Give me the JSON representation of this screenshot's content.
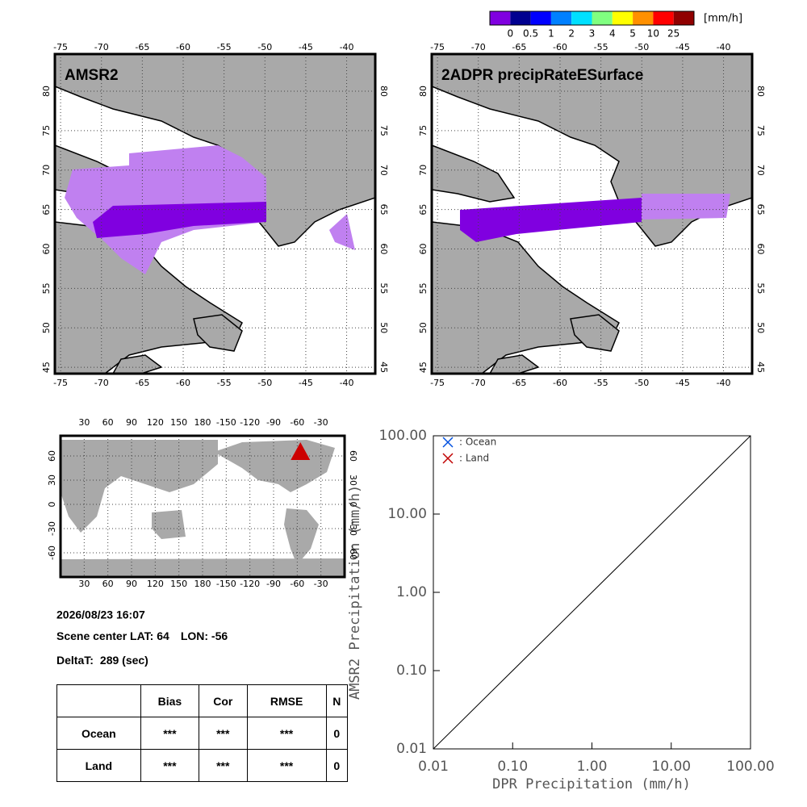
{
  "colorbar": {
    "colors": [
      "#8000e0",
      "#000090",
      "#0000ff",
      "#0080ff",
      "#00e0ff",
      "#80ff80",
      "#ffff00",
      "#ff9000",
      "#ff0000",
      "#900000"
    ],
    "labels": [
      0,
      0.5,
      1,
      2,
      3,
      4,
      5,
      10,
      25
    ],
    "unit": "[mm/h]"
  },
  "maps": [
    {
      "title": "AMSR2",
      "lonlim": [
        -75.7,
        -36.5
      ],
      "latlim": [
        44.2,
        84.7
      ],
      "lonticks": [
        -75,
        -70,
        -65,
        -60,
        -55,
        -50,
        -45,
        -40
      ],
      "latticks": [
        45,
        50,
        55,
        60,
        65,
        70,
        75,
        80
      ]
    },
    {
      "title": "2ADPR precipRateESurface",
      "lonlim": [
        -75.7,
        -36.5
      ],
      "latlim": [
        44.2,
        84.7
      ],
      "lonticks": [
        -75,
        -70,
        -65,
        -60,
        -55,
        -50,
        -45,
        -40
      ],
      "latticks": [
        45,
        50,
        55,
        60,
        65,
        70,
        75,
        80
      ]
    }
  ],
  "world_map": {
    "lonlim": [
      0,
      360
    ],
    "latlim": [
      -90,
      85
    ],
    "lonticks": [
      30,
      60,
      90,
      120,
      150,
      180,
      {
        "value": 210,
        "label": "-150"
      },
      {
        "value": 240,
        "label": "-120"
      },
      {
        "value": 270,
        "label": "-90"
      },
      {
        "value": 300,
        "label": "-60"
      },
      {
        "value": 330,
        "label": "-30"
      }
    ],
    "latticks": [
      -60,
      -30,
      0,
      30,
      60
    ],
    "marker_color": "#cc0000"
  },
  "scene": {
    "time": "2026/08/23 16:07",
    "lat_label": "Scene center LAT:",
    "lat": 64,
    "lon_label": "LON:",
    "lon": -56,
    "deltat_label": "DeltaT:",
    "deltat": 289,
    "deltat_unit": "(sec)"
  },
  "table": {
    "header": [
      "Bias",
      "Cor",
      "RMSE",
      "N"
    ],
    "rows": [
      {
        "label": "Ocean",
        "cells": [
          "***",
          "***",
          "***",
          0
        ]
      },
      {
        "label": "Land",
        "cells": [
          "***",
          "***",
          "***",
          0
        ]
      }
    ]
  },
  "chart_data": {
    "type": "scatter",
    "x_label": "DPR Precipitation (mm/h)",
    "y_label": "AMSR2 Precipitation (mm/h)",
    "xlim": [
      0.01,
      100
    ],
    "ylim": [
      0.01,
      100
    ],
    "log_scale": true,
    "grid": false,
    "legend": "upper left",
    "xticks": [
      {
        "value": 0.01,
        "label": "0.01"
      },
      {
        "value": 0.1,
        "label": "0.10"
      },
      {
        "value": 1,
        "label": "1.00"
      },
      {
        "value": 10,
        "label": "10.00"
      },
      {
        "value": 100,
        "label": "100.00"
      }
    ],
    "yticks": [
      {
        "value": 0.01,
        "label": "0.01"
      },
      {
        "value": 0.1,
        "label": "0.10"
      },
      {
        "value": 1,
        "label": "1.00"
      },
      {
        "value": 10,
        "label": "10.00"
      },
      {
        "value": 100,
        "label": "100.00"
      }
    ],
    "series": [
      {
        "name": ": Ocean",
        "color": "#0050e0",
        "x": [],
        "values": []
      },
      {
        "name": ": Land",
        "color": "#c00000",
        "x": [],
        "values": []
      }
    ]
  }
}
